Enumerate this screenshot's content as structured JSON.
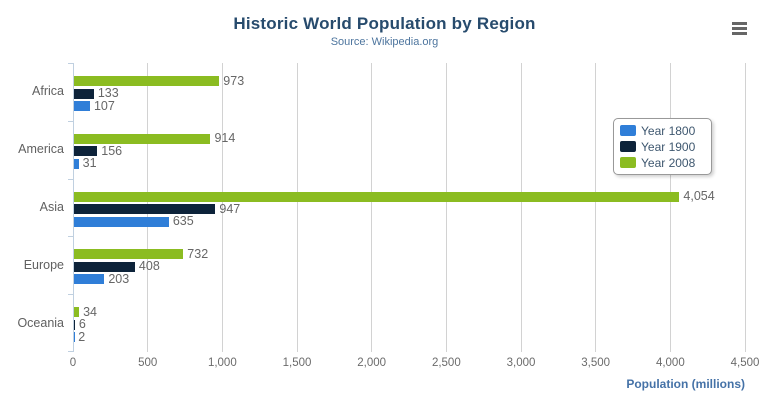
{
  "chart_data": {
    "type": "bar",
    "orientation": "horizontal",
    "title": "Historic World Population by Region",
    "subtitle": "Source: Wikipedia.org",
    "categories": [
      "Africa",
      "America",
      "Asia",
      "Europe",
      "Oceania"
    ],
    "series": [
      {
        "name": "Year 1800",
        "color": "#2f7ed8",
        "values": [
          107,
          31,
          635,
          203,
          2
        ]
      },
      {
        "name": "Year 1900",
        "color": "#0d233a",
        "values": [
          133,
          156,
          947,
          408,
          6
        ]
      },
      {
        "name": "Year 2008",
        "color": "#8bbc21",
        "values": [
          973,
          914,
          4054,
          732,
          34
        ]
      }
    ],
    "bar_order_top_to_bottom": [
      "Year 2008",
      "Year 1900",
      "Year 1800"
    ],
    "xlabel": "Population (millions)",
    "ylabel": "",
    "xlim": [
      0,
      4500
    ],
    "x_tick_step": 500,
    "x_tick_labels": [
      "0",
      "500",
      "1,000",
      "1,500",
      "2,000",
      "2,500",
      "3,000",
      "3,500",
      "4,000",
      "4,500"
    ],
    "grid": true,
    "data_labels": true,
    "legend_position": "right-inside",
    "legend_entries": [
      "Year 1800",
      "Year 1900",
      "Year 2008"
    ]
  },
  "ui": {
    "menu_icon": "hamburger-menu-icon",
    "colors": {
      "title": "#274b6d",
      "subtitle": "#4d759e",
      "axis_title": "#4572a7",
      "tick_label": "#6b6b6b",
      "category_label": "#606060",
      "data_label": "#666666",
      "gridline": "#d2d2d2",
      "category_axis_line": "#c0d0e0",
      "legend_border": "#999999",
      "legend_text": "#3e576f",
      "menu_icon": "#666666",
      "background": "#ffffff"
    }
  }
}
